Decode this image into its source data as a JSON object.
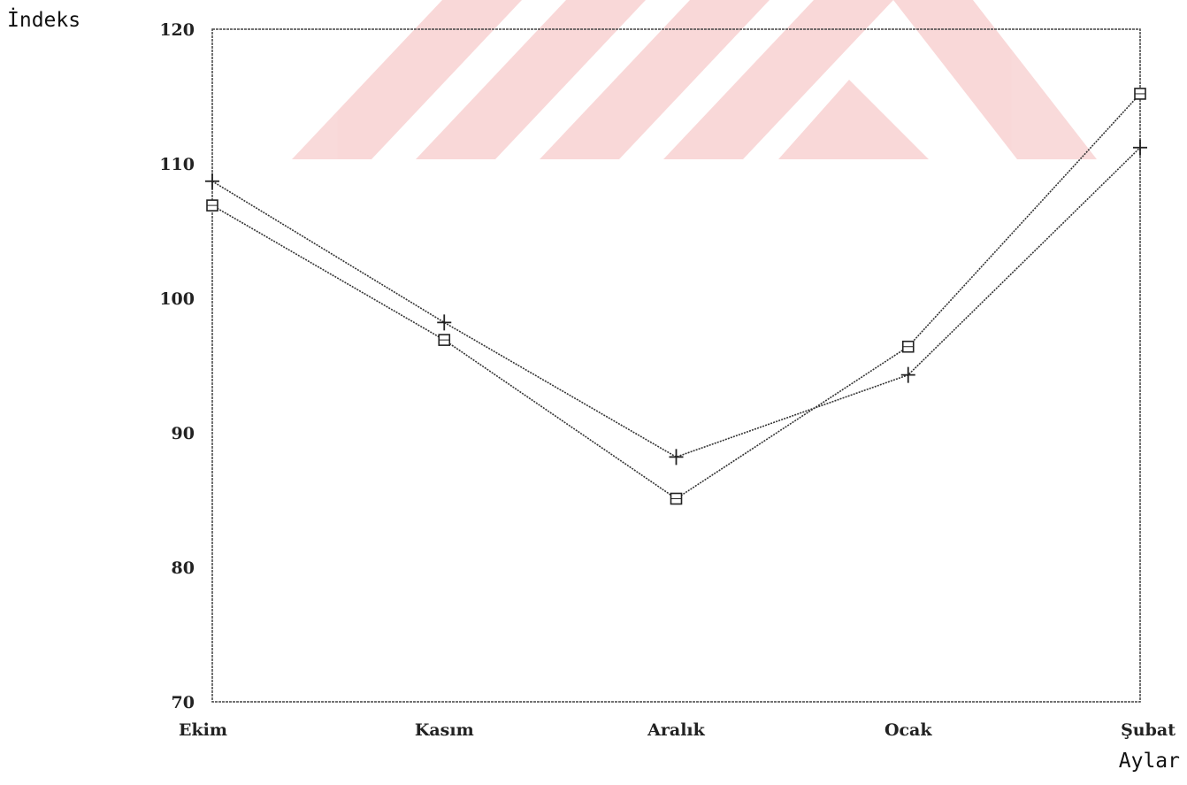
{
  "chart_data": {
    "type": "line",
    "title": "",
    "xlabel": "Aylar",
    "ylabel": "İndeks",
    "categories": [
      "Ekim",
      "Kasım",
      "Aralık",
      "Ocak",
      "Şubat"
    ],
    "ylim": [
      70,
      120
    ],
    "yticks": [
      70,
      80,
      90,
      100,
      110,
      120
    ],
    "grid": false,
    "series": [
      {
        "marker": "plus",
        "values": [
          108.7,
          98.2,
          88.2,
          94.3,
          111.2
        ]
      },
      {
        "marker": "square",
        "values": [
          106.9,
          96.9,
          85.1,
          96.4,
          115.2
        ]
      }
    ]
  }
}
